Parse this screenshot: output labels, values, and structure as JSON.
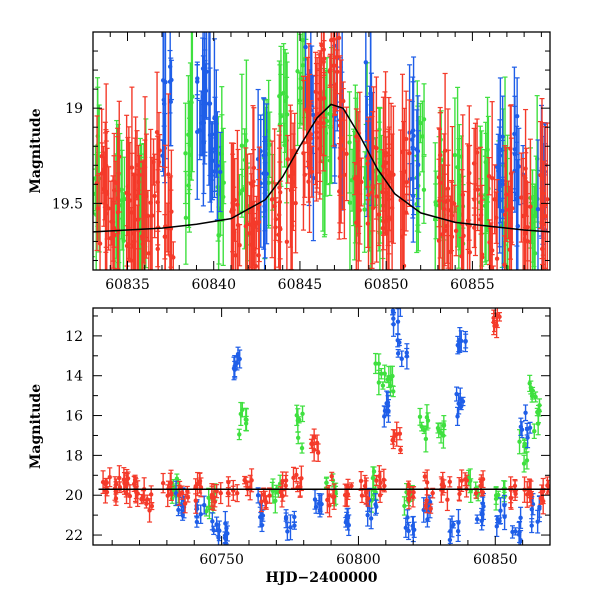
{
  "colors": {
    "g": "#3fe03f",
    "r": "#f43a2a",
    "o": "#1f5ee8",
    "model": "#000000",
    "frame": "#000000",
    "background": "#ffffff"
  },
  "chart_data": [
    {
      "type": "scatter",
      "title": "",
      "xlabel": "",
      "ylabel": "Magnitude",
      "xlim": [
        60833,
        60859.5
      ],
      "ylim": [
        19.85,
        18.6
      ],
      "y_inverted": true,
      "xticks": [
        "60835",
        "60840",
        "60845",
        "60850",
        "60855"
      ],
      "yticks": [
        "19",
        "19.5"
      ],
      "grid": false,
      "legend": "none",
      "series": [
        {
          "color_key": "r",
          "x": [
            60833.5,
            60834.0,
            60834.3,
            60835.2,
            60835.5,
            60836.1,
            60836.6,
            60837.4,
            60841.3,
            60842.1,
            60842.4,
            60843.6,
            60844.5,
            60845.4,
            60845.9,
            60846.3,
            60847.0,
            60847.5,
            60848.3,
            60849.2,
            60849.8,
            60850.3,
            60851.1,
            60853.3,
            60853.8,
            60854.6,
            60855.3,
            60856.2,
            60857.1,
            60858.1,
            60859.2
          ],
          "y": [
            19.45,
            19.55,
            19.6,
            19.6,
            19.5,
            19.55,
            19.45,
            19.6,
            19.5,
            19.55,
            19.6,
            19.5,
            19.4,
            19.2,
            19.0,
            18.85,
            18.8,
            19.2,
            19.4,
            19.4,
            19.5,
            19.45,
            19.5,
            19.45,
            19.55,
            19.6,
            19.5,
            19.6,
            19.55,
            19.5,
            19.55
          ]
        },
        {
          "color_key": "g",
          "x": [
            60833.1,
            60834.6,
            60835.9,
            60838.5,
            60840.4,
            60841.7,
            60843.2,
            60844.0,
            60845.1,
            60846.6,
            60848.1,
            60848.9,
            60849.6,
            60852.0,
            60853.1,
            60854.2,
            60855.7,
            60856.8,
            60858.6
          ],
          "y": [
            19.4,
            19.5,
            19.6,
            19.2,
            19.4,
            19.45,
            19.3,
            19.0,
            18.8,
            19.1,
            19.3,
            19.4,
            19.45,
            19.35,
            19.5,
            19.4,
            19.45,
            19.55,
            19.5
          ]
        },
        {
          "color_key": "o",
          "x": [
            60837.3,
            60839.3,
            60839.6,
            60840.1,
            60842.8,
            60845.6,
            60847.2,
            60849.0,
            60851.6,
            60856.5,
            60857.7,
            60859.0
          ],
          "y": [
            19.0,
            18.95,
            19.05,
            19.2,
            19.35,
            19.0,
            19.05,
            19.1,
            19.3,
            19.35,
            19.3,
            19.4
          ]
        }
      ],
      "model_curve": {
        "x": [
          60833,
          60835,
          60837,
          60839,
          60841,
          60843,
          60844,
          60845,
          60846,
          60846.8,
          60847.5,
          60848.5,
          60849.5,
          60850.5,
          60852,
          60854,
          60856,
          60858,
          60859.5
        ],
        "y": [
          19.65,
          19.64,
          19.63,
          19.61,
          19.58,
          19.48,
          19.36,
          19.2,
          19.05,
          18.98,
          19.0,
          19.15,
          19.32,
          19.45,
          19.55,
          19.6,
          19.62,
          19.64,
          19.65
        ]
      }
    },
    {
      "type": "scatter",
      "title": "",
      "xlabel": "HJD−2400000",
      "ylabel": "Magnitude",
      "xlim": [
        60703,
        60870
      ],
      "ylim": [
        22.5,
        10.6
      ],
      "y_inverted": true,
      "xticks": [
        "60750",
        "60800",
        "60850"
      ],
      "yticks": [
        "12",
        "14",
        "16",
        "18",
        "20",
        "22"
      ],
      "grid": false,
      "legend": "none",
      "series": [
        {
          "color_key": "r",
          "x": [
            60708,
            60711,
            60714,
            60717,
            60720,
            60723,
            60730,
            60736,
            60742,
            60748,
            60754,
            60760,
            60766,
            60772,
            60778,
            60784,
            60790,
            60796,
            60802,
            60808,
            60814,
            60820,
            60826,
            60832,
            60838,
            60844,
            60850,
            60856,
            60862,
            60868
          ],
          "y": [
            19.6,
            19.8,
            19.5,
            19.9,
            19.7,
            20.1,
            19.8,
            20.0,
            19.7,
            20.2,
            19.9,
            19.6,
            20.0,
            19.8,
            19.7,
            17.2,
            19.9,
            19.8,
            19.6,
            19.5,
            17.0,
            19.8,
            19.9,
            19.7,
            19.6,
            19.8,
            11.3,
            19.7,
            20.0,
            19.8
          ]
        },
        {
          "color_key": "g",
          "x": [
            60733,
            60746,
            60758,
            60770,
            60779,
            60790,
            60805,
            60808,
            60812,
            60818,
            60824,
            60830,
            60842,
            60852,
            60860,
            60864,
            60866
          ],
          "y": [
            19.8,
            20.3,
            16.5,
            19.9,
            16.6,
            19.7,
            19.6,
            13.7,
            14.6,
            19.8,
            16.8,
            16.8,
            19.6,
            19.8,
            17.9,
            14.7,
            16.2
          ]
        },
        {
          "color_key": "o",
          "x": [
            60735,
            60742,
            60748,
            60752,
            60755,
            60765,
            60775,
            60785,
            60795,
            60805,
            60811,
            60814,
            60816,
            60819,
            60825,
            60835,
            60837,
            60838,
            60845,
            60852,
            60858,
            60861,
            60865
          ],
          "y": [
            20.5,
            21.0,
            21.6,
            22.0,
            13.3,
            20.7,
            21.2,
            20.5,
            21.4,
            20.8,
            15.5,
            11.0,
            12.5,
            21.8,
            20.6,
            21.5,
            15.4,
            12.5,
            20.8,
            21.2,
            22.0,
            16.6,
            20.9
          ]
        }
      ],
      "model_curve": {
        "x": [
          60705,
          60870
        ],
        "y": [
          19.7,
          19.7
        ]
      }
    }
  ]
}
